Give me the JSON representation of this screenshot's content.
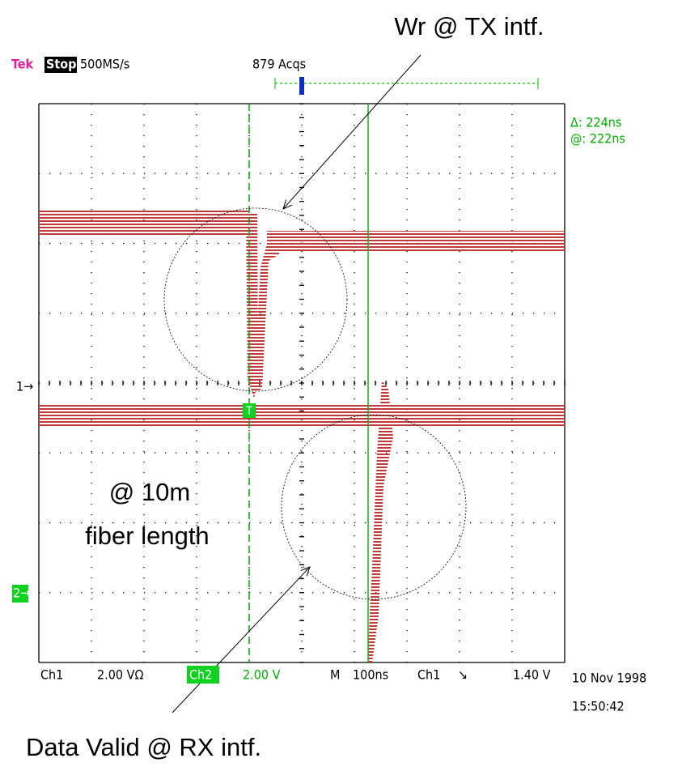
{
  "header": {
    "brand": "Tek",
    "status": "Stop:",
    "sample_rate": "500MS/s",
    "acquisitions": "879 Acqs"
  },
  "cursor_readout": {
    "delta": "Δ: 224ns",
    "at": "@: 222ns"
  },
  "markers": {
    "ch1": "1→",
    "ch2": "2→",
    "trigger": "T"
  },
  "footer": {
    "ch1_label": "Ch1",
    "ch1_scale": "2.00 VΩ",
    "ch2_label": "Ch2",
    "ch2_scale": "2.00 V",
    "timebase_label": "M",
    "timebase": "100ns",
    "trigger_source": "Ch1",
    "trigger_slope": "↘",
    "trigger_level": "1.40 V",
    "date": "10 Nov 1998",
    "time": "15:50:42"
  },
  "annotations": {
    "top": "Wr @ TX intf.",
    "bottom": "Data Valid @ RX intf.",
    "note_line1": "@ 10m",
    "note_line2": "fiber length"
  }
}
